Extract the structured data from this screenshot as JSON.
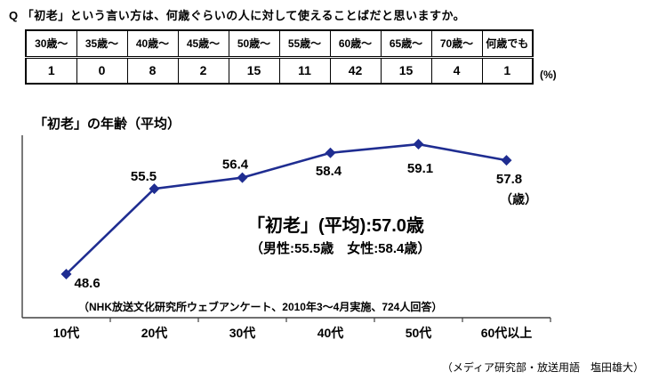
{
  "question": "Q 「初老」という言い方は、何歳ぐらいの人に対して使えることばだと思いますか。",
  "table": {
    "headers": [
      "30歳～",
      "35歳～",
      "40歳～",
      "45歳～",
      "50歳～",
      "55歳～",
      "60歳～",
      "65歳～",
      "70歳～",
      "何歳でも"
    ],
    "values": [
      "1",
      "0",
      "8",
      "2",
      "15",
      "11",
      "42",
      "15",
      "4",
      "1"
    ],
    "unit_label": "(%)"
  },
  "chart_data": {
    "type": "line",
    "title": "「初老」の年齢（平均）",
    "categories": [
      "10代",
      "20代",
      "30代",
      "40代",
      "50代",
      "60代以上"
    ],
    "values": [
      48.6,
      55.5,
      56.4,
      58.4,
      59.1,
      57.8
    ],
    "value_labels": [
      "48.6",
      "55.5",
      "56.4",
      "58.4",
      "59.1",
      "57.8"
    ],
    "unit_label": "（歳）",
    "xlabel": "",
    "ylabel": "",
    "ylim": [
      47,
      61
    ],
    "grid": false,
    "legend": "none",
    "line_color": "#1f2d91",
    "axis_color": "#404040",
    "annotation_main": "「初老」(平均):57.0歳",
    "annotation_sub": "（男性:55.5歳　女性:58.4歳）",
    "source": "（NHK放送文化研究所ウェブアンケート、2010年3～4月実施、724人回答）"
  },
  "credit": "（メディア研究部・放送用語　塩田雄大）"
}
